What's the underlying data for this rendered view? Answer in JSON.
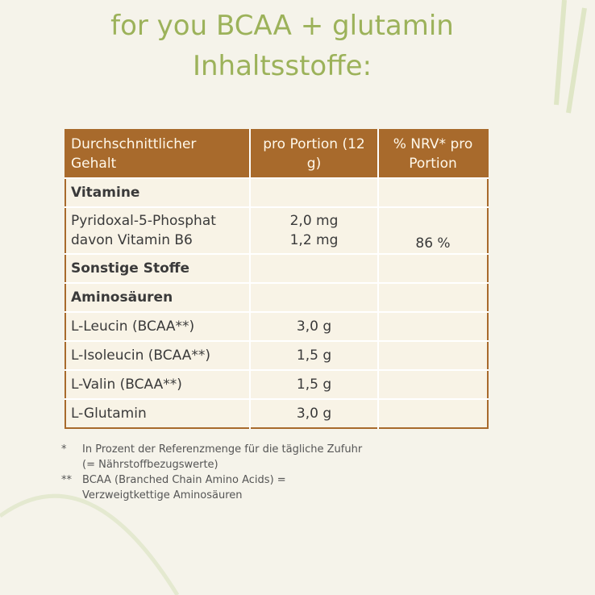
{
  "title": {
    "line1": "for you BCAA + glutamin",
    "line2": "Inhaltsstoffe:"
  },
  "table": {
    "headers": [
      "Durchschnittlicher Gehalt",
      "pro Portion (12 g)",
      "% NRV* pro Portion"
    ],
    "rows": [
      {
        "name": "Vitamine",
        "amount": "",
        "nrv": "",
        "bold": true
      },
      {
        "name": "Pyridoxal-5-Phosphat",
        "name2": "davon Vitamin B6",
        "amount": "2,0 mg",
        "amount2": "1,2 mg",
        "nrv": "86 %"
      },
      {
        "name": "Sonstige Stoffe",
        "amount": "",
        "nrv": "",
        "bold": true
      },
      {
        "name": "Aminosäuren",
        "amount": "",
        "nrv": "",
        "bold": true
      },
      {
        "name": "L-Leucin (BCAA**)",
        "amount": "3,0 g",
        "nrv": ""
      },
      {
        "name": "L-Isoleucin (BCAA**)",
        "amount": "1,5 g",
        "nrv": ""
      },
      {
        "name": "L-Valin (BCAA**)",
        "amount": "1,5 g",
        "nrv": ""
      },
      {
        "name": "L-Glutamin",
        "amount": "3,0 g",
        "nrv": ""
      }
    ]
  },
  "footnotes": [
    {
      "mark": "*",
      "text": "In Prozent der Referenzmenge für die tägliche Zufuhr (= Nährstoffbezugswerte)"
    },
    {
      "mark": "**",
      "text": "BCAA (Branched Chain Amino Acids) = Verzweigtkettige Aminosäuren"
    }
  ],
  "colors": {
    "title": "#9cb25a",
    "header": "#a86a2c",
    "cell": "#f8f3e6",
    "background": "#f5f3ea"
  }
}
